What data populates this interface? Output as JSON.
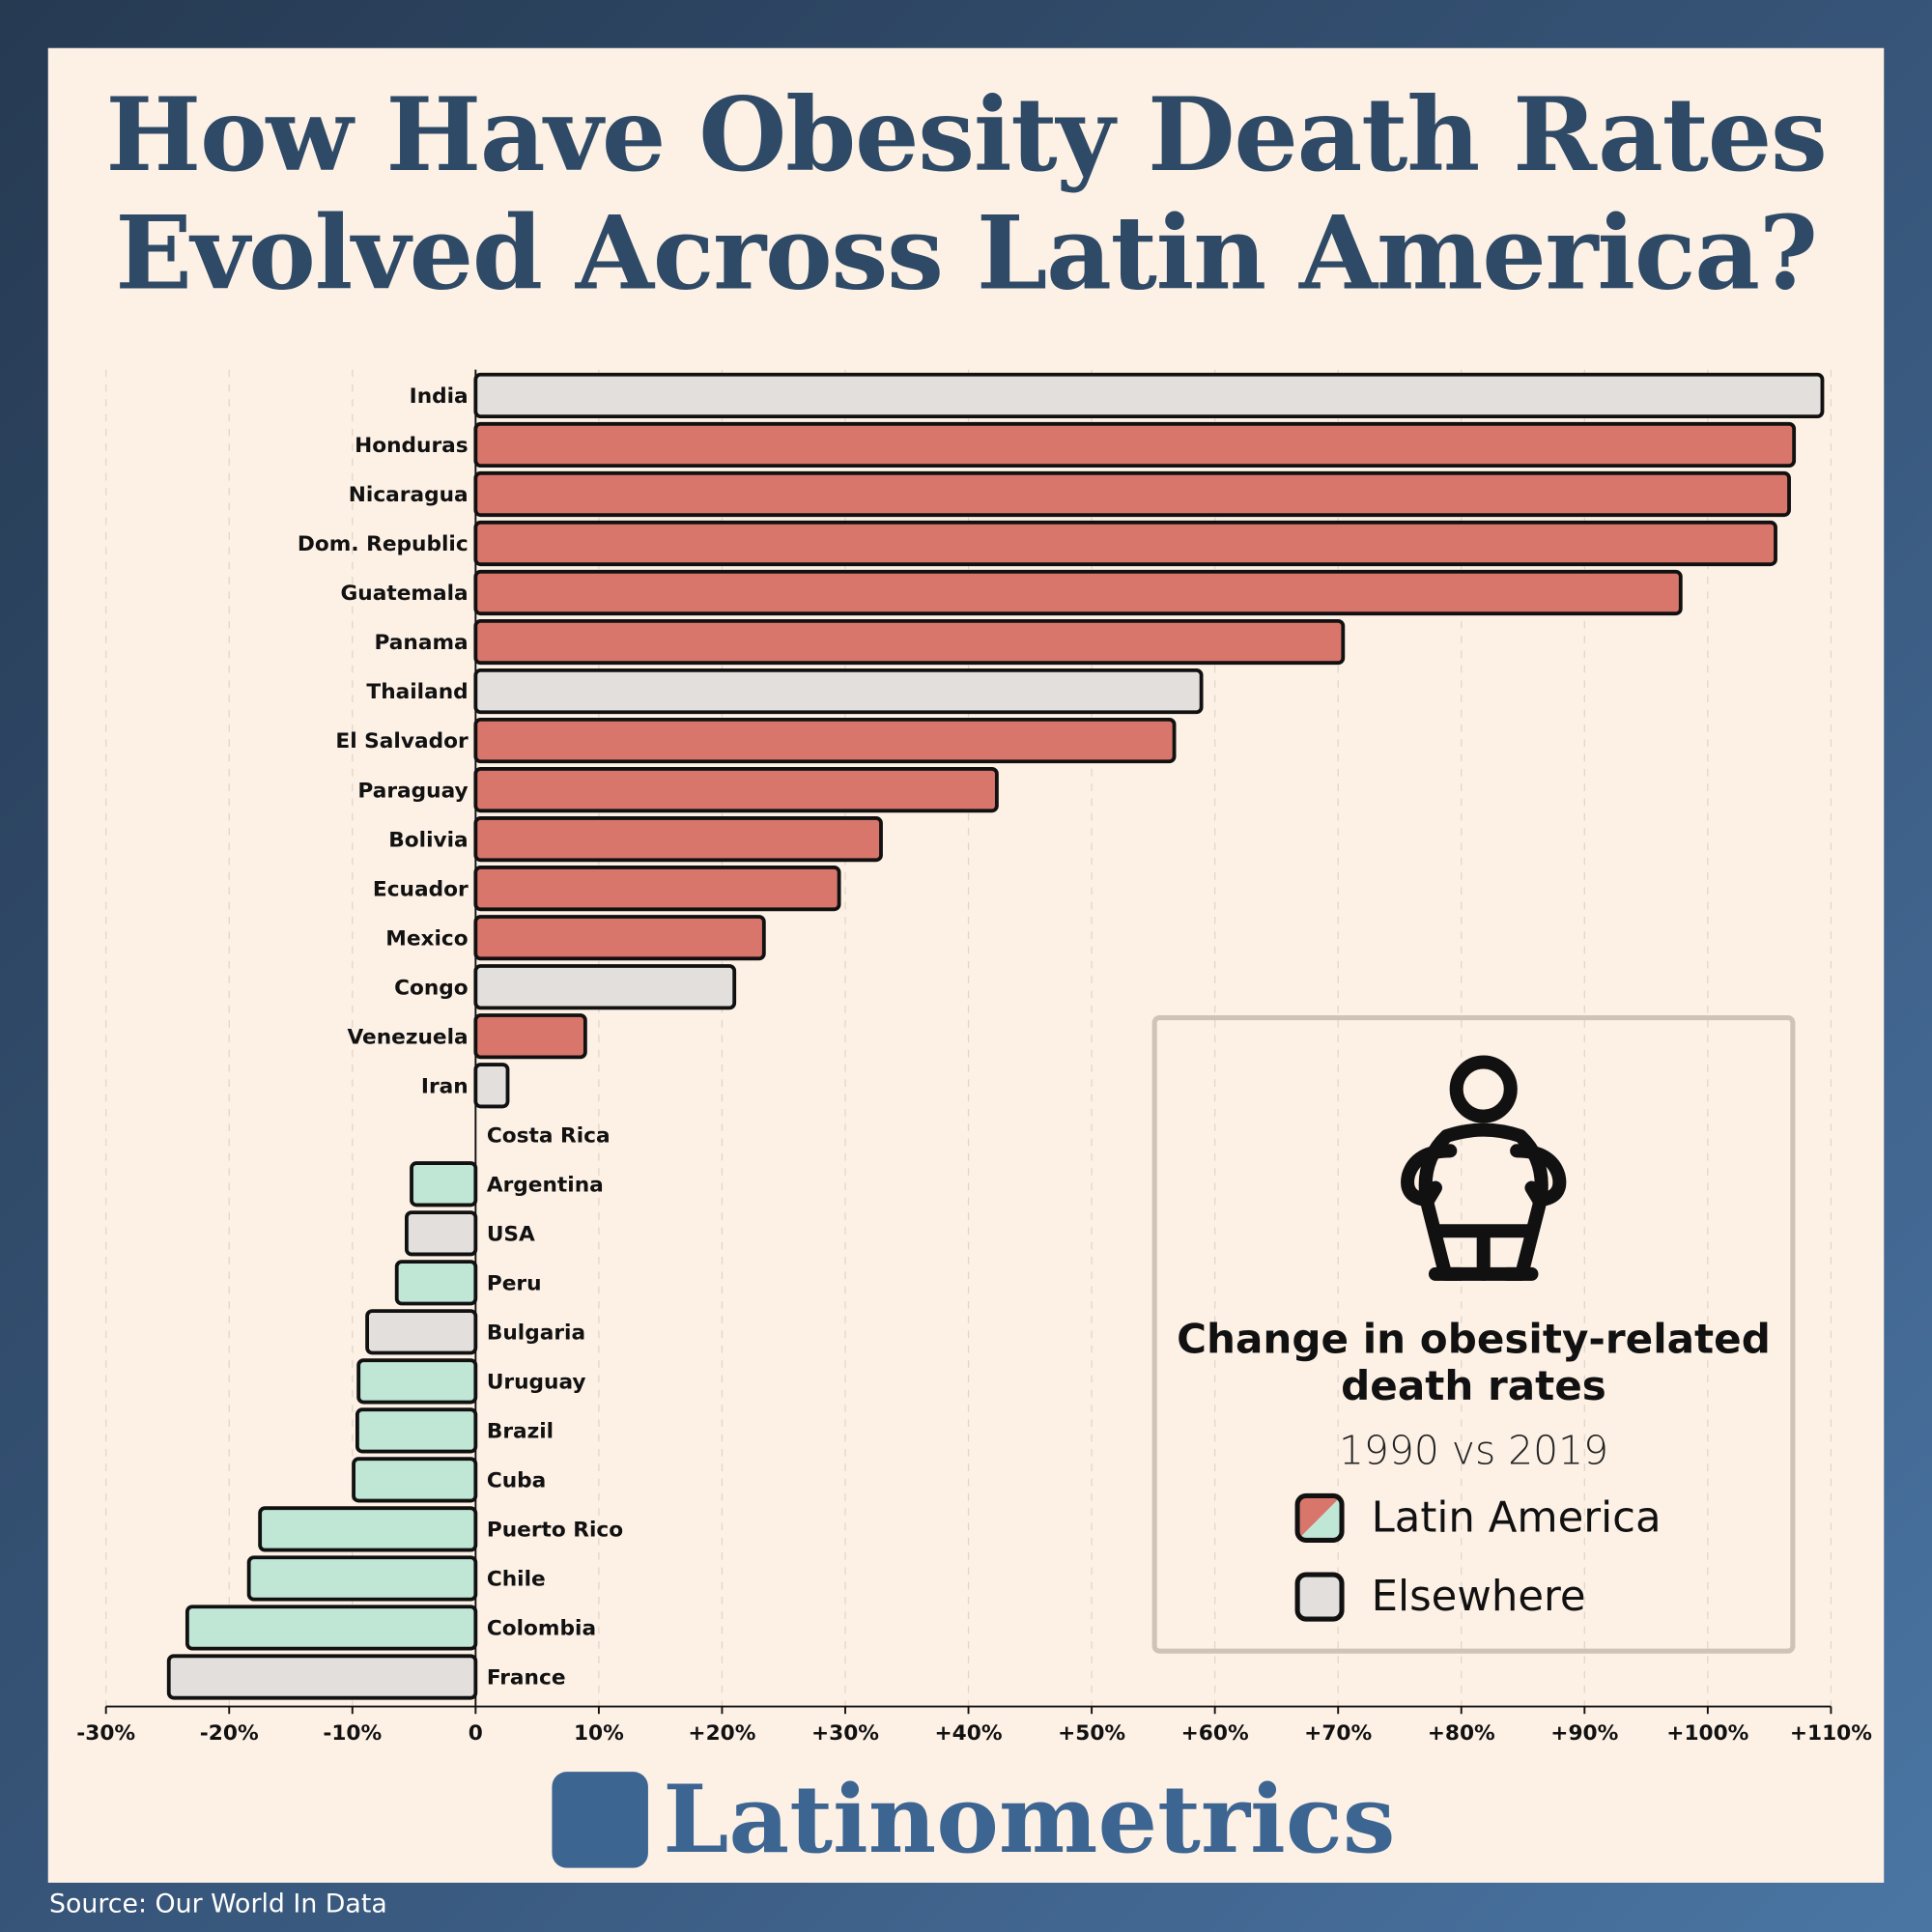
{
  "title": [
    "How Have Obesity Death Rates",
    "Evolved Across Latin America?"
  ],
  "chart_data": {
    "type": "bar",
    "orientation": "horizontal",
    "title": "How Have Obesity Death Rates Evolved Across Latin America?",
    "xlim": [
      -30,
      110
    ],
    "xticks": [
      -30,
      -20,
      -10,
      0,
      10,
      20,
      30,
      40,
      50,
      60,
      70,
      80,
      90,
      100,
      110
    ],
    "xtick_labels": [
      "-30%",
      "-20%",
      "-10%",
      "0",
      "10%",
      "+20%",
      "+30%",
      "+40%",
      "+50%",
      "+60%",
      "+70%",
      "+80%",
      "+90%",
      "+100%",
      "+110%"
    ],
    "grid": "vertical dashed",
    "categories": [
      "India",
      "Honduras",
      "Nicaragua",
      "Dom. Republic",
      "Guatemala",
      "Panama",
      "Thailand",
      "El Salvador",
      "Paraguay",
      "Bolivia",
      "Ecuador",
      "Mexico",
      "Congo",
      "Venezuela",
      "Iran",
      "Costa Rica",
      "Argentina",
      "USA",
      "Peru",
      "Bulgaria",
      "Uruguay",
      "Brazil",
      "Cuba",
      "Puerto Rico",
      "Chile",
      "Colombia",
      "France"
    ],
    "values": [
      109.3,
      107.0,
      106.6,
      105.5,
      97.8,
      70.4,
      58.9,
      56.7,
      42.3,
      32.9,
      29.5,
      23.4,
      21.0,
      8.9,
      2.6,
      0,
      -5.2,
      -5.6,
      -6.4,
      -8.8,
      -9.5,
      -9.6,
      -9.9,
      -17.5,
      -18.4,
      -23.4,
      -24.9
    ],
    "group": [
      "Elsewhere",
      "Latin America",
      "Latin America",
      "Latin America",
      "Latin America",
      "Latin America",
      "Elsewhere",
      "Latin America",
      "Latin America",
      "Latin America",
      "Latin America",
      "Latin America",
      "Elsewhere",
      "Latin America",
      "Elsewhere",
      "Latin America",
      "Latin America",
      "Elsewhere",
      "Latin America",
      "Elsewhere",
      "Latin America",
      "Latin America",
      "Latin America",
      "Latin America",
      "Latin America",
      "Latin America",
      "Elsewhere"
    ],
    "colors": {
      "latin_positive": "#d9766b",
      "latin_negative": "#c0e6d6",
      "elsewhere": "#e3dfdc"
    }
  },
  "legend": {
    "title": "Change in obesity-related death rates",
    "subtitle": "1990 vs 2019",
    "items": [
      {
        "label": "Latin America"
      },
      {
        "label": "Elsewhere"
      }
    ],
    "icon": "obese-person-icon"
  },
  "brand": "Latinometrics",
  "source": "Source: Our World In Data"
}
